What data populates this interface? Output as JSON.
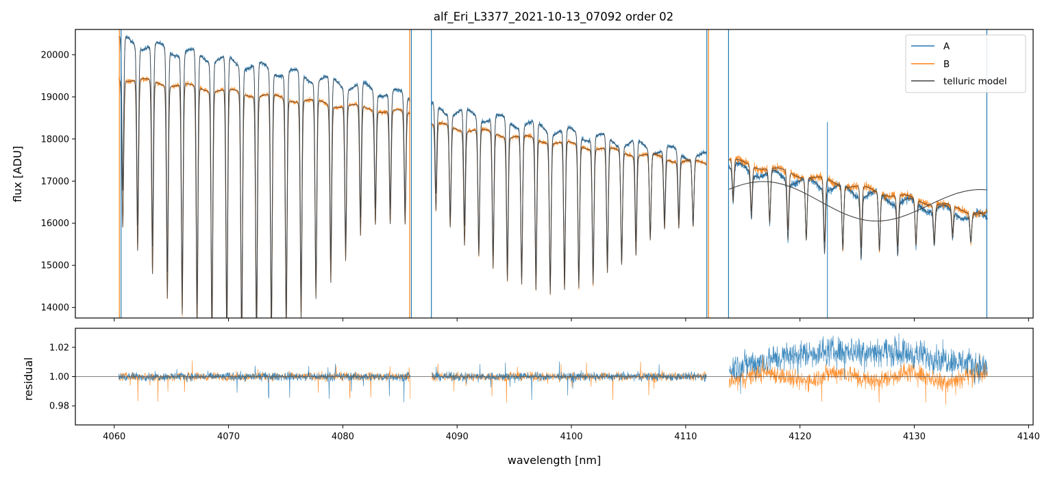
{
  "chart_data": [
    {
      "type": "line",
      "panel": "top",
      "title": "alf_Eri_L3377_2021-10-13_07092  order 02",
      "xlabel": "",
      "ylabel": "flux [ADU]",
      "xlim": [
        4056.6,
        4140.4
      ],
      "ylim": [
        13750,
        20600
      ],
      "yticks": [
        14000,
        15000,
        16000,
        17000,
        18000,
        19000,
        20000
      ],
      "xticks": [
        4060,
        4070,
        4080,
        4090,
        4100,
        4110,
        4120,
        4130,
        4140
      ],
      "legend": {
        "placement": "top-right",
        "entries": [
          "A",
          "B",
          "telluric model"
        ]
      },
      "segments": [
        {
          "x0": 4060.4,
          "x1": 4085.9,
          "A_start": 20350,
          "A_end": 19000,
          "B_start": 19450,
          "B_end": 18600,
          "line_spacing_nm": 1.3,
          "line_depth_max": 0.32
        },
        {
          "x0": 4087.8,
          "x1": 4111.8,
          "A_start": 18750,
          "A_end": 17550,
          "B_start": 18350,
          "B_end": 17400,
          "line_spacing_nm": 1.25,
          "line_depth_max": 0.2
        },
        {
          "x0": 4113.8,
          "x1": 4136.4,
          "A_start": 17350,
          "A_end": 16100,
          "B_start": 17500,
          "B_end": 16200,
          "line_spacing_nm": 1.6,
          "line_depth_max": 0.09
        }
      ],
      "series": [
        {
          "name": "A",
          "color": "#1f77b4"
        },
        {
          "name": "B",
          "color": "#ff7f0e"
        },
        {
          "name": "telluric model",
          "color": "#404040"
        }
      ]
    },
    {
      "type": "line",
      "panel": "bottom",
      "xlabel": "wavelength [nm]",
      "ylabel": "residual",
      "xlim": [
        4056.6,
        4140.4
      ],
      "ylim": [
        0.967,
        1.033
      ],
      "yticks": [
        0.98,
        1.0,
        1.02
      ],
      "ytick_labels": [
        "0.98",
        "1.00",
        "1.02"
      ],
      "xticks": [
        4060,
        4070,
        4080,
        4090,
        4100,
        4110,
        4120,
        4130,
        4140
      ],
      "reference_line": 1.0,
      "series": [
        {
          "name": "A",
          "color": "#1f77b4"
        },
        {
          "name": "B",
          "color": "#ff7f0e"
        }
      ]
    }
  ]
}
